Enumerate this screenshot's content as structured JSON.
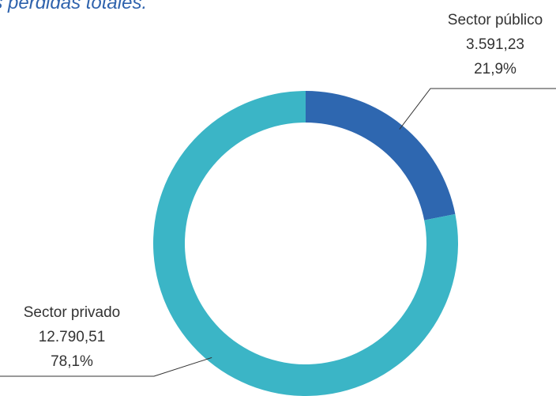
{
  "chart_data": {
    "type": "pie",
    "title": "as pérdidas totales.",
    "series": [
      {
        "slices": [
          {
            "name": "Sector público",
            "value": 3591.23,
            "value_label": "3.591,23",
            "percent_label": "21,9%",
            "color": "#2e67b0"
          },
          {
            "name": "Sector privado",
            "value": 12790.51,
            "value_label": "12.790,51",
            "percent_label": "78,1%",
            "color": "#3bb5c6"
          }
        ]
      }
    ],
    "donut": true,
    "legend": "none",
    "leader_line_color": "#333333"
  }
}
